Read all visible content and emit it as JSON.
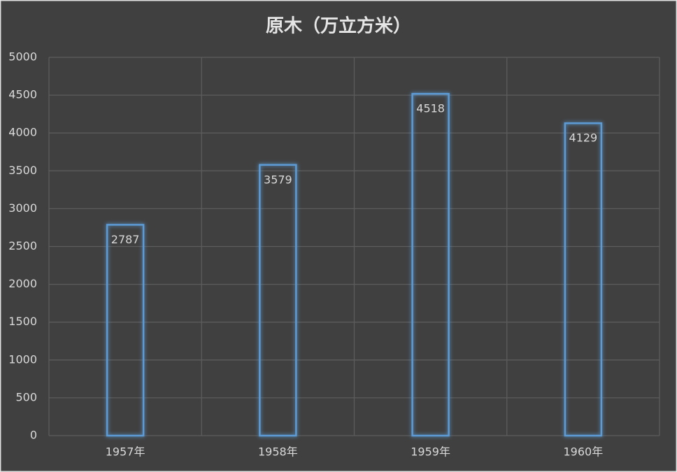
{
  "chart_data": {
    "type": "bar",
    "title": "原木（万立方米）",
    "categories": [
      "1957年",
      "1958年",
      "1959年",
      "1960年"
    ],
    "values": [
      2787,
      3579,
      4518,
      4129
    ],
    "color": "#5b9bd5",
    "ylim": [
      0,
      5000
    ],
    "yticks": [
      0,
      500,
      1000,
      1500,
      2000,
      2500,
      3000,
      3500,
      4000,
      4500,
      5000
    ],
    "grid": true
  }
}
